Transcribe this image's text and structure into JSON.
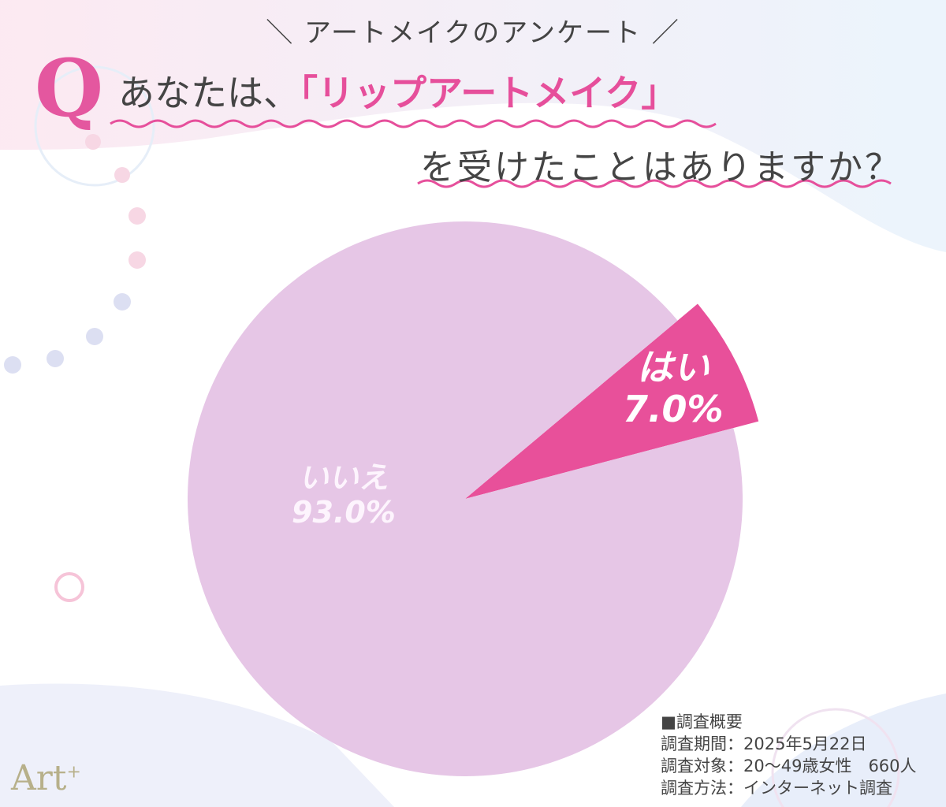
{
  "header": {
    "subtitle": "＼ アートメイクのアンケート ／",
    "q_mark": "Q",
    "question_part1": "あなたは、",
    "question_highlight": "「リップアートメイク」",
    "question_part2": "を受けたことはありますか？"
  },
  "chart_data": {
    "type": "pie",
    "title": "あなたは、「リップアートメイク」を受けたことはありますか？",
    "slices": [
      {
        "label": "はい",
        "value": 7.0,
        "display": "7.0%",
        "color": "#e8509a",
        "exploded": true
      },
      {
        "label": "いいえ",
        "value": 93.0,
        "display": "93.0%",
        "color": "#e6c6e6"
      }
    ]
  },
  "notes": {
    "heading": "■調査概要",
    "lines": [
      "調査期間：2025年5月22日",
      "調査対象：20〜49歳女性　660人",
      "調査方法：インターネット調査"
    ]
  },
  "logo": {
    "text": "Art",
    "sup": "+"
  }
}
